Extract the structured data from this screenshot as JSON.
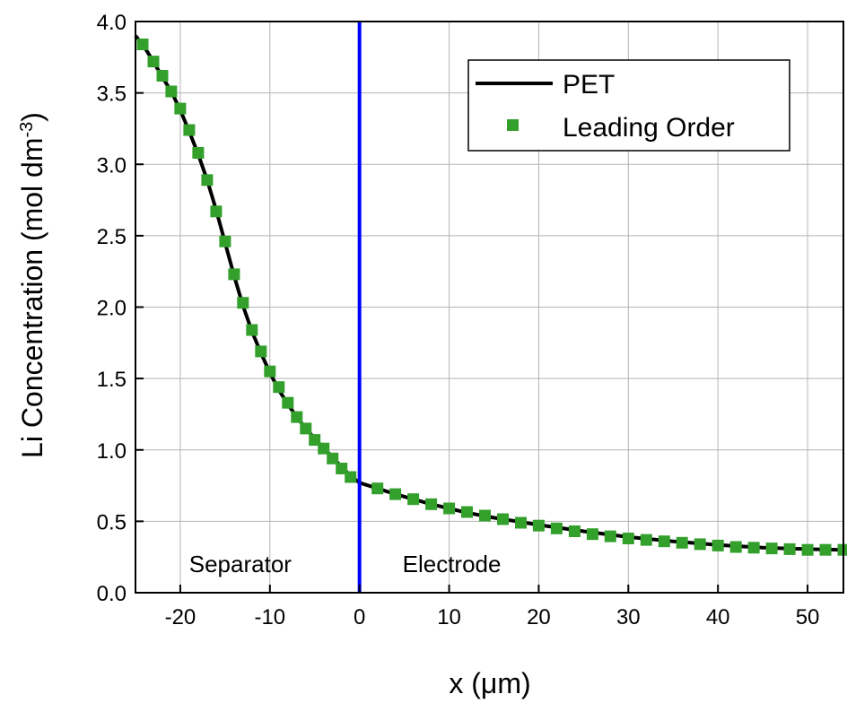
{
  "chart_data": {
    "type": "line",
    "xlabel_prefix": "x (",
    "xlabel_unit": "μm",
    "xlabel_suffix": ")",
    "ylabel": "Li Concentration (mol dm",
    "ylabel_exponent": "-3",
    "ylabel_close": ")",
    "xlim": [
      -25,
      54
    ],
    "ylim": [
      0.0,
      4.0
    ],
    "xticks": [
      -20,
      -10,
      0,
      10,
      20,
      30,
      40,
      50
    ],
    "xtick_labels": [
      "-20",
      "-10",
      "0",
      "10",
      "20",
      "30",
      "40",
      "50"
    ],
    "yticks": [
      0.0,
      0.5,
      1.0,
      1.5,
      2.0,
      2.5,
      3.0,
      3.5,
      4.0
    ],
    "ytick_labels": [
      "0.0",
      "0.5",
      "1.0",
      "1.5",
      "2.0",
      "2.5",
      "3.0",
      "3.5",
      "4.0"
    ],
    "grid": true,
    "legend_position": "top-right",
    "annotations": [
      {
        "text": "Separator",
        "x": -13.3,
        "y": 0.2
      },
      {
        "text": "Electrode",
        "x": 10.3,
        "y": 0.2
      }
    ],
    "vline": {
      "x": 0,
      "color": "#0000ff"
    },
    "series": [
      {
        "name": "PET",
        "style": "line",
        "color": "#000000",
        "x": [
          -25,
          -24,
          -23,
          -22,
          -21,
          -20,
          -19,
          -18,
          -17,
          -16,
          -15,
          -14,
          -13,
          -12,
          -11,
          -10,
          -9,
          -8,
          -7,
          -6,
          -5,
          -4,
          -3,
          -2,
          -1,
          0,
          2,
          4,
          6,
          8,
          10,
          12,
          15,
          18,
          20,
          25,
          30,
          35,
          40,
          45,
          50,
          54
        ],
        "y": [
          3.9,
          3.82,
          3.72,
          3.61,
          3.51,
          3.38,
          3.23,
          3.07,
          2.89,
          2.68,
          2.45,
          2.22,
          2.01,
          1.83,
          1.68,
          1.54,
          1.42,
          1.32,
          1.23,
          1.15,
          1.08,
          1.01,
          0.95,
          0.88,
          0.82,
          0.77,
          0.73,
          0.69,
          0.655,
          0.62,
          0.59,
          0.56,
          0.525,
          0.495,
          0.475,
          0.43,
          0.39,
          0.36,
          0.335,
          0.315,
          0.305,
          0.3
        ]
      },
      {
        "name": "Leading Order",
        "style": "square-marker",
        "color": "#33a02c",
        "x": [
          -24.2,
          -23,
          -22,
          -21,
          -20,
          -19,
          -18,
          -17,
          -16,
          -15,
          -14,
          -13,
          -12,
          -11,
          -10,
          -9,
          -8,
          -7,
          -6,
          -5,
          -4,
          -3,
          -2,
          -1,
          2,
          4,
          6,
          8,
          10,
          12,
          14,
          16,
          18,
          20,
          22,
          24,
          26,
          28,
          30,
          32,
          34,
          36,
          38,
          40,
          42,
          44,
          46,
          48,
          50,
          52,
          54
        ],
        "y": [
          3.84,
          3.72,
          3.62,
          3.51,
          3.39,
          3.24,
          3.08,
          2.89,
          2.67,
          2.46,
          2.23,
          2.03,
          1.84,
          1.69,
          1.55,
          1.44,
          1.33,
          1.23,
          1.15,
          1.07,
          1.01,
          0.94,
          0.87,
          0.81,
          0.73,
          0.69,
          0.655,
          0.62,
          0.59,
          0.565,
          0.54,
          0.515,
          0.49,
          0.47,
          0.45,
          0.43,
          0.41,
          0.395,
          0.38,
          0.37,
          0.36,
          0.35,
          0.34,
          0.33,
          0.32,
          0.315,
          0.31,
          0.305,
          0.3,
          0.3,
          0.3
        ]
      }
    ]
  }
}
